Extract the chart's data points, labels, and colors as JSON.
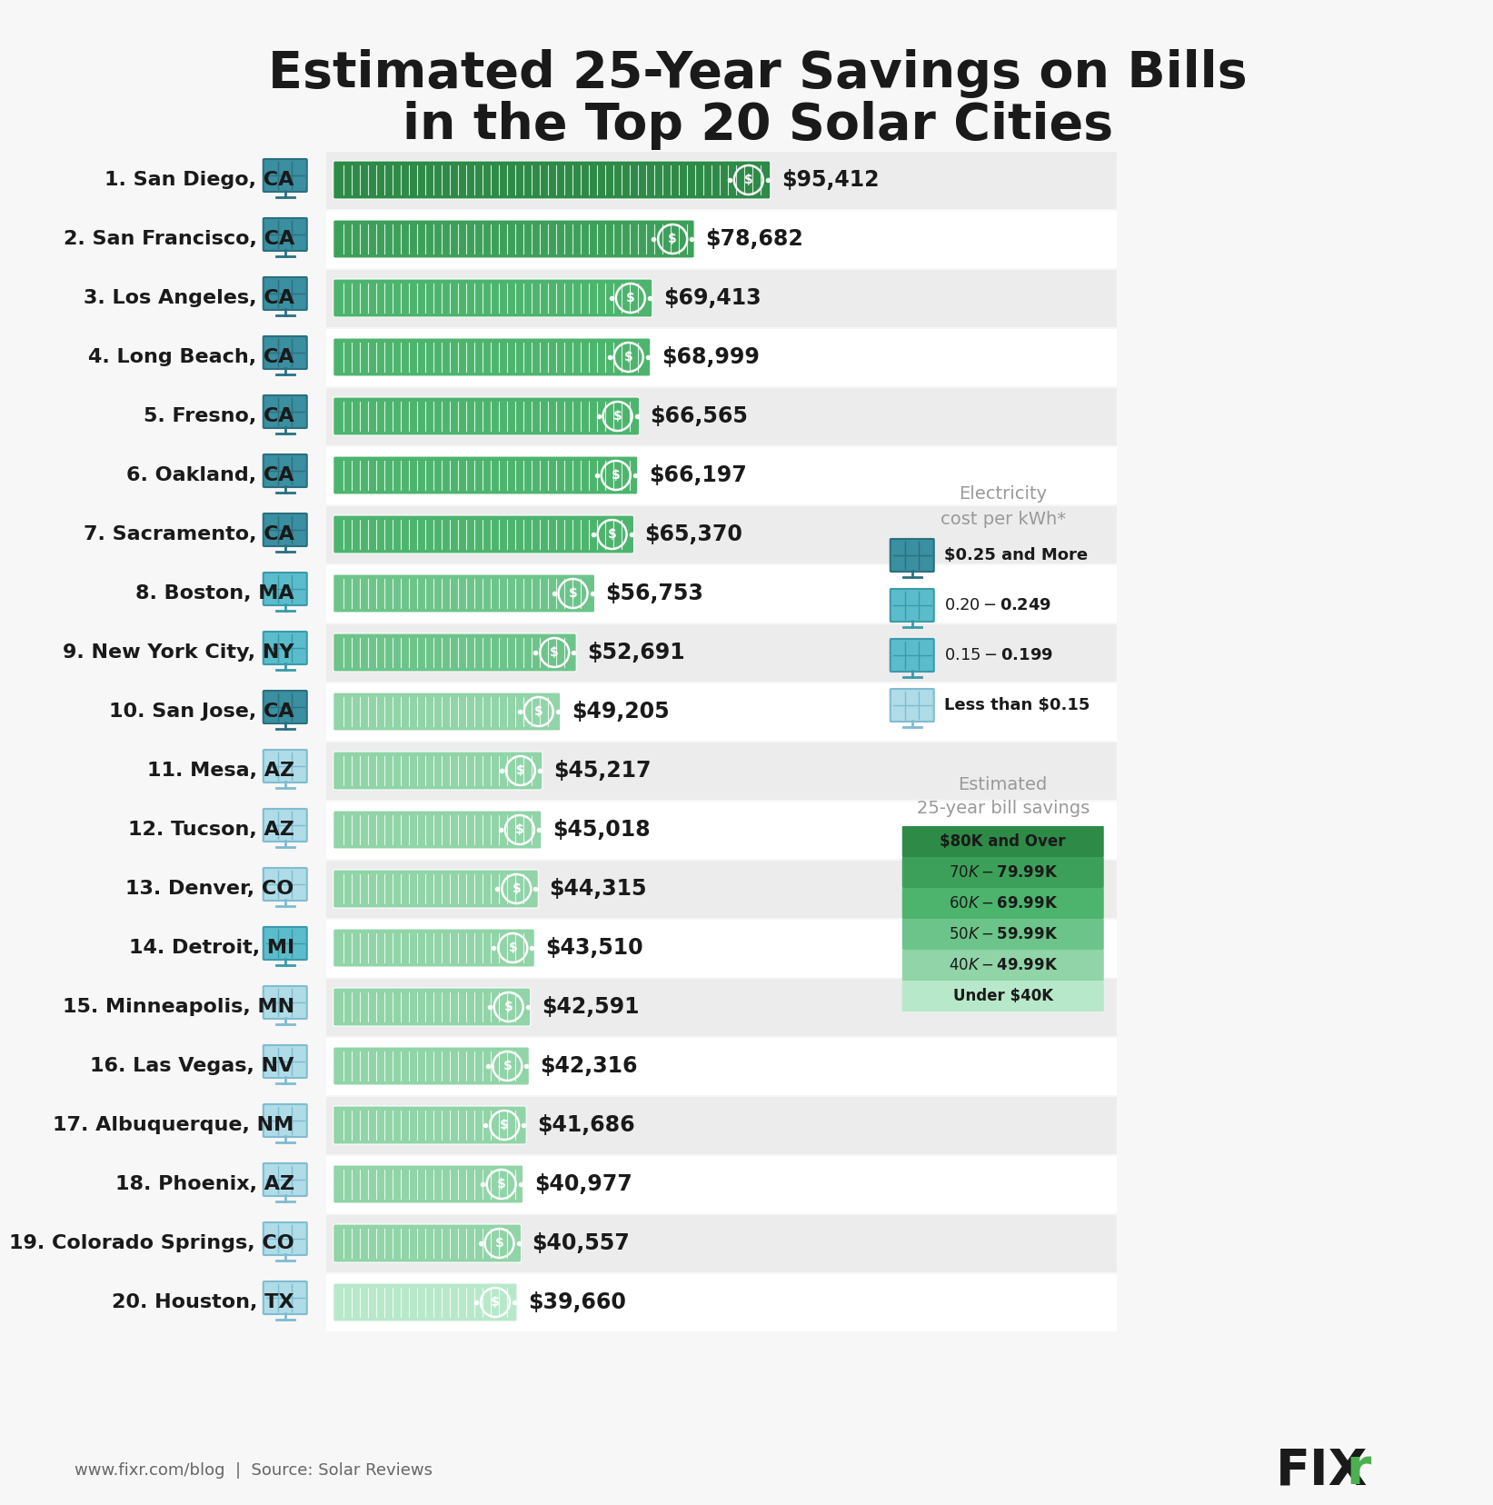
{
  "title_line1": "Estimated 25-Year Savings on Bills",
  "title_line2": "in the Top 20 Solar Cities",
  "cities": [
    "1. San Diego, CA",
    "2. San Francisco, CA",
    "3. Los Angeles, CA",
    "4. Long Beach, CA",
    "5. Fresno, CA",
    "6. Oakland, CA",
    "7. Sacramento, CA",
    "8. Boston, MA",
    "9. New York City, NY",
    "10. San Jose, CA",
    "11. Mesa, AZ",
    "12. Tucson, AZ",
    "13. Denver, CO",
    "14. Detroit, MI",
    "15. Minneapolis, MN",
    "16. Las Vegas, NV",
    "17. Albuquerque, NM",
    "18. Phoenix, AZ",
    "19. Colorado Springs, CO",
    "20. Houston, TX"
  ],
  "values": [
    95412,
    78682,
    69413,
    68999,
    66565,
    66197,
    65370,
    56753,
    52691,
    49205,
    45217,
    45018,
    44315,
    43510,
    42591,
    42316,
    41686,
    40977,
    40557,
    39660
  ],
  "labels": [
    "$95,412",
    "$78,682",
    "$69,413",
    "$68,999",
    "$66,565",
    "$66,197",
    "$65,370",
    "$56,753",
    "$52,691",
    "$49,205",
    "$45,217",
    "$45,018",
    "$44,315",
    "$43,510",
    "$42,591",
    "$42,316",
    "$41,686",
    "$40,977",
    "$40,557",
    "$39,660"
  ],
  "electricity_cost_category": [
    3,
    3,
    3,
    3,
    3,
    3,
    3,
    2,
    2,
    3,
    1,
    1,
    1,
    2,
    1,
    1,
    1,
    1,
    1,
    1
  ],
  "savings_colors": {
    "80k_over": "#2d8a47",
    "70k_79k": "#3da05a",
    "60k_69k": "#4db46e",
    "50k_59k": "#6dc48a",
    "40k_49k": "#90d4a8",
    "under_40k": "#b8e8ca"
  },
  "solar_panel_colors": {
    "3": [
      "#3a8fa0",
      "#2a7080"
    ],
    "2": [
      "#5bbccc",
      "#3a9aaa"
    ],
    "1": [
      "#b0dce8",
      "#80bcd0"
    ]
  },
  "footer_left": "www.fixr.com/blog  |  Source: Solar Reviews",
  "max_value": 100000,
  "background_color": "#f7f7f7",
  "row_bg_even": "#ececec",
  "row_bg_odd": "#ffffff"
}
